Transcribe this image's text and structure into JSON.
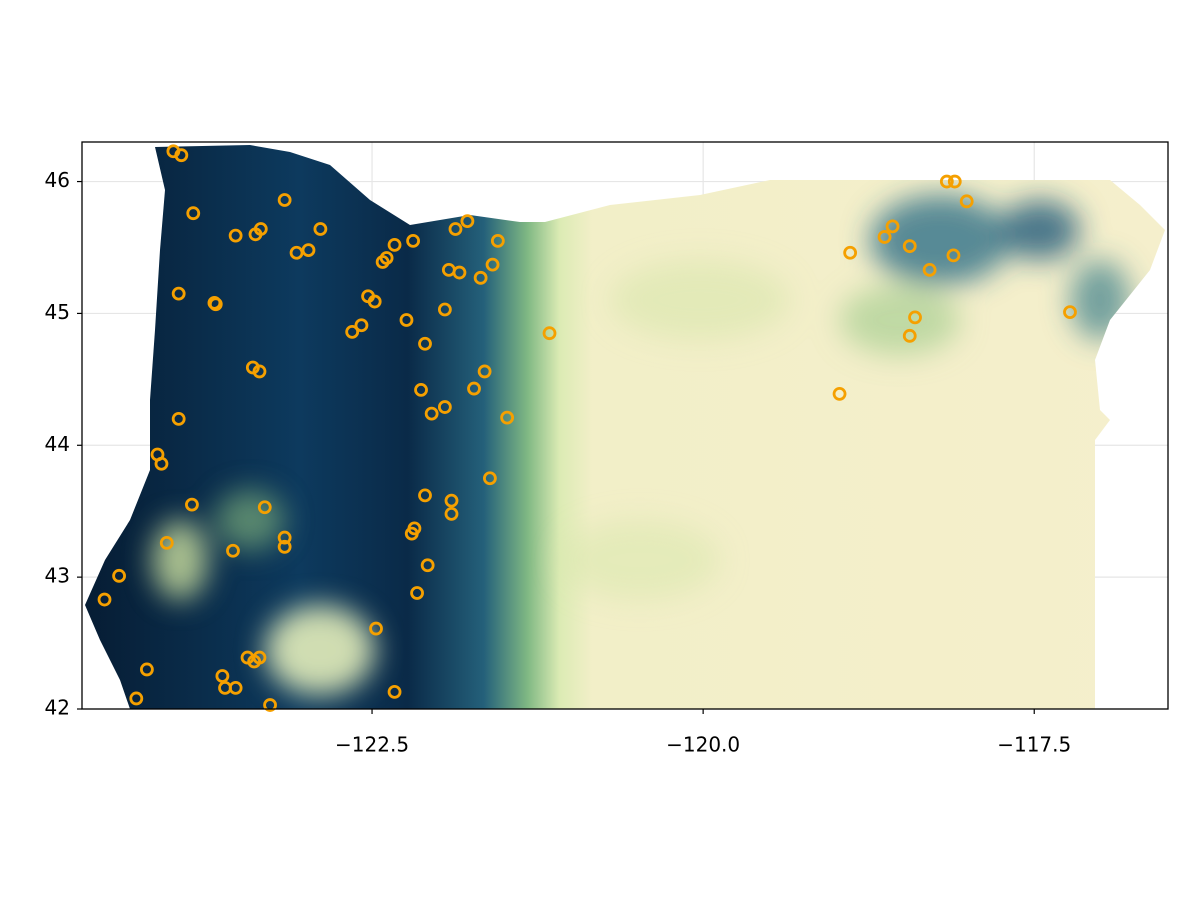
{
  "chart_data": {
    "type": "scatter",
    "x": [
      -124.0,
      -123.94,
      -123.85,
      -123.16,
      -123.53,
      -123.38,
      -123.34,
      -122.89,
      -123.07,
      -122.98,
      -123.96,
      -123.69,
      -123.68,
      -123.4,
      -123.35,
      -123.96,
      -124.12,
      -124.09,
      -123.86,
      -123.31,
      -124.05,
      -123.55,
      -123.16,
      -123.16,
      -124.41,
      -124.52,
      -124.2,
      -124.28,
      -123.63,
      -123.61,
      -123.53,
      -123.44,
      -123.39,
      -123.35,
      -123.27,
      -122.47,
      -122.33,
      -122.53,
      -122.48,
      -122.65,
      -122.58,
      -122.24,
      -122.33,
      -122.39,
      -122.42,
      -122.19,
      -121.95,
      -122.1,
      -122.13,
      -122.05,
      -121.95,
      -121.87,
      -121.78,
      -121.92,
      -121.84,
      -121.59,
      -121.68,
      -121.55,
      -121.65,
      -121.73,
      -121.48,
      -122.1,
      -121.9,
      -121.9,
      -122.2,
      -122.18,
      -122.08,
      -122.16,
      -121.61,
      -121.16,
      -118.89,
      -118.97,
      -118.63,
      -118.57,
      -118.44,
      -118.29,
      -118.4,
      -118.44,
      -118.11,
      -118.01,
      -118.16,
      -118.1,
      -117.23
    ],
    "y": [
      46.23,
      46.2,
      45.76,
      45.86,
      45.59,
      45.6,
      45.64,
      45.64,
      45.46,
      45.48,
      45.15,
      45.08,
      45.07,
      44.59,
      44.56,
      44.2,
      43.93,
      43.86,
      43.55,
      43.53,
      43.26,
      43.2,
      43.3,
      43.23,
      43.01,
      42.83,
      42.3,
      42.08,
      42.25,
      42.16,
      42.16,
      42.39,
      42.36,
      42.39,
      42.03,
      42.61,
      42.13,
      45.13,
      45.09,
      44.86,
      44.91,
      44.95,
      45.52,
      45.42,
      45.39,
      45.55,
      45.03,
      44.77,
      44.42,
      44.24,
      44.29,
      45.64,
      45.7,
      45.33,
      45.31,
      45.37,
      45.27,
      45.55,
      44.56,
      44.43,
      44.21,
      43.62,
      43.58,
      43.48,
      43.33,
      43.37,
      43.09,
      42.88,
      43.75,
      44.85,
      45.46,
      44.39,
      45.58,
      45.66,
      45.51,
      45.33,
      44.97,
      44.83,
      45.44,
      45.85,
      46.0,
      46.0,
      45.01
    ],
    "color": "#f5a000",
    "xlim": [
      -124.69,
      -116.49
    ],
    "ylim": [
      42,
      46.3
    ],
    "xticks": [
      {
        "value": -122.5,
        "label": "−122.5"
      },
      {
        "value": -120,
        "label": "−120.0"
      },
      {
        "value": -117.5,
        "label": "−117.5"
      }
    ],
    "yticks": [
      42,
      43,
      44,
      45,
      46
    ],
    "grid": true
  }
}
